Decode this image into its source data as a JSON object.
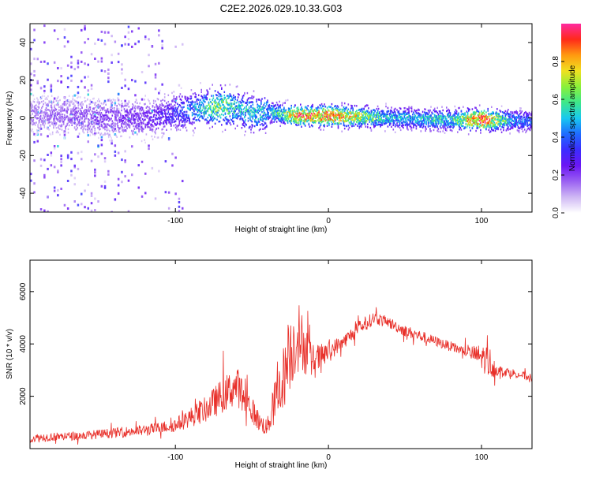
{
  "title": "C2E2.2026.029.10.33.G03",
  "colors": {
    "series": "#e8302a",
    "frame": "#000000",
    "colorbar": [
      "#ffffff",
      "#cfb8f4",
      "#9a60f2",
      "#6b16f4",
      "#3c2cff",
      "#1f6bff",
      "#18c8f0",
      "#3ee88a",
      "#8af03a",
      "#f0e020",
      "#ff9a10",
      "#ff2a1a",
      "#ff2aa0"
    ]
  },
  "chart_data": [
    {
      "type": "heatmap",
      "xlabel": "Height of straight line (km)",
      "ylabel": "Frequency (Hz)",
      "xlim": [
        -195,
        133
      ],
      "ylim": [
        -50,
        50
      ],
      "x_ticks": [
        -100,
        0,
        100
      ],
      "x_tick_labels": [
        "-100",
        "0",
        "100"
      ],
      "y_ticks": [
        -40,
        -20,
        0,
        20,
        40
      ],
      "y_tick_labels": [
        "-40",
        "-20",
        "0",
        "20",
        "40"
      ],
      "colorbar": {
        "label": "Normalized spectral amplitude",
        "range": [
          0,
          1
        ],
        "ticks": [
          0,
          0.2,
          0.4,
          0.6,
          0.8
        ],
        "tick_labels": [
          "0.0",
          "0.2",
          "0.4",
          "0.6",
          "0.8"
        ]
      },
      "ridge": {
        "x": [
          -195,
          -170,
          -150,
          -130,
          -115,
          -100,
          -90,
          -80,
          -70,
          -60,
          -50,
          -40,
          -30,
          -20,
          -10,
          0,
          20,
          40,
          60,
          80,
          100,
          120,
          133
        ],
        "freq": [
          2,
          1,
          0,
          0,
          0,
          3,
          4,
          5,
          6,
          5,
          2,
          3,
          2,
          1,
          1,
          1,
          0.5,
          0,
          -0.5,
          -1,
          -1,
          -1.5,
          -1.5
        ],
        "amplitude": [
          0.15,
          0.18,
          0.2,
          0.22,
          0.25,
          0.35,
          0.45,
          0.55,
          0.7,
          0.5,
          0.55,
          0.5,
          0.6,
          0.9,
          0.85,
          0.9,
          0.7,
          0.5,
          0.5,
          0.55,
          0.95,
          0.45,
          0.4
        ]
      }
    },
    {
      "type": "line",
      "xlabel": "Height of straight line (km)",
      "ylabel": "SNR (10 * v/v)",
      "xlim": [
        -195,
        133
      ],
      "ylim": [
        0,
        7200
      ],
      "x_ticks": [
        -100,
        0,
        100
      ],
      "x_tick_labels": [
        "-100",
        "0",
        "100"
      ],
      "y_ticks": [
        2000,
        4000,
        6000
      ],
      "y_tick_labels": [
        "2000",
        "4000",
        "6000"
      ],
      "series": [
        {
          "x": [
            -195,
            -180,
            -160,
            -140,
            -120,
            -110,
            -100,
            -90,
            -80,
            -70,
            -60,
            -50,
            -45,
            -40,
            -35,
            -30,
            -25,
            -20,
            -15,
            -10,
            -5,
            0,
            10,
            20,
            30,
            40,
            50,
            60,
            70,
            80,
            90,
            100,
            105,
            110,
            120,
            133
          ],
          "values": [
            400,
            450,
            500,
            600,
            700,
            800,
            900,
            1200,
            1500,
            2000,
            2400,
            1500,
            1000,
            800,
            1800,
            2600,
            3600,
            4400,
            3800,
            3300,
            3500,
            3700,
            4100,
            4600,
            5000,
            4800,
            4500,
            4300,
            4100,
            3900,
            3700,
            3500,
            3300,
            3000,
            2900,
            2700
          ],
          "spread": [
            300,
            300,
            300,
            350,
            400,
            400,
            500,
            700,
            900,
            1200,
            1400,
            900,
            700,
            600,
            1600,
            2200,
            2600,
            2400,
            1800,
            1300,
            900,
            700,
            500,
            500,
            450,
            400,
            400,
            400,
            350,
            350,
            350,
            900,
            1200,
            400,
            300,
            300
          ]
        }
      ]
    }
  ]
}
